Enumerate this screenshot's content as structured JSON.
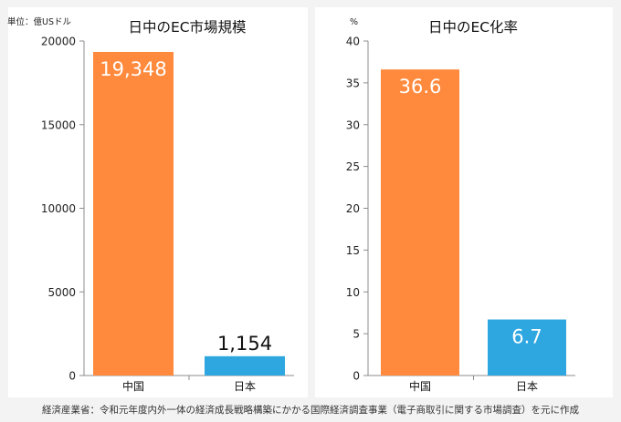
{
  "colors": {
    "china": "#ff8a3d",
    "japan": "#2ea7e0",
    "axis": "#8c8c8c",
    "background": "#f3f3f3",
    "panel": "#ffffff"
  },
  "source": "経済産業省：令和元年度内外一体の経済成長戦略構築にかかる国際経済調査事業（電子商取引に関する市場調査）を元に作成",
  "chart_data": [
    {
      "type": "bar",
      "title": "日中のEC市場規模",
      "unit_label": "単位：億USドル",
      "categories": [
        "中国",
        "日本"
      ],
      "values": [
        19348,
        1154
      ],
      "data_labels": [
        "19,348",
        "1,154"
      ],
      "ylim": [
        0,
        20000
      ],
      "yticks": [
        "0",
        "5000",
        "10000",
        "15000",
        "20000"
      ],
      "grid": false,
      "legend": "none"
    },
    {
      "type": "bar",
      "title": "日中のEC化率",
      "unit_label": "%",
      "categories": [
        "中国",
        "日本"
      ],
      "values": [
        36.6,
        6.7
      ],
      "data_labels": [
        "36.6",
        "6.7"
      ],
      "ylim": [
        0,
        40
      ],
      "yticks": [
        "0",
        "5",
        "10",
        "15",
        "20",
        "25",
        "30",
        "35",
        "40"
      ],
      "grid": false,
      "legend": "none"
    }
  ]
}
